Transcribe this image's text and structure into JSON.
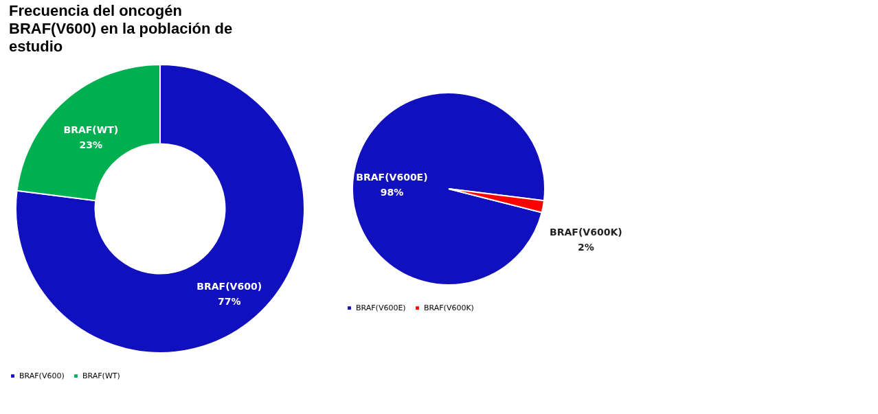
{
  "chart_data": [
    {
      "type": "donut",
      "title": "Frecuencia del oncogén BRAF(V600) en la población de estudio",
      "categories": [
        "BRAF(V600)",
        "BRAF(WT)"
      ],
      "values": [
        77,
        23
      ],
      "value_labels": [
        "77%",
        "23%"
      ],
      "colors": [
        "#1010bf",
        "#00b050"
      ],
      "legend": "bottom"
    },
    {
      "type": "pie",
      "categories": [
        "BRAF(V600E)",
        "BRAF(V600K)"
      ],
      "values": [
        98,
        2
      ],
      "value_labels": [
        "98%",
        "2%"
      ],
      "colors": [
        "#1010bf",
        "#ff0000"
      ],
      "legend": "bottom"
    }
  ]
}
